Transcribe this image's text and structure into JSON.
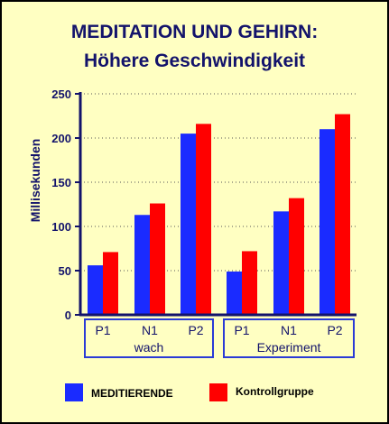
{
  "chart_data": {
    "type": "bar",
    "title": "MEDITATION UND GEHIRN:",
    "subtitle": "Höhere Geschwindigkeit",
    "ylabel": "Millisekunden",
    "xlabel": "",
    "ylim": [
      0,
      250
    ],
    "yticks": [
      0,
      50,
      100,
      150,
      200,
      250
    ],
    "grid": true,
    "categories": [
      "P1",
      "N1",
      "P2",
      "P1",
      "N1",
      "P2"
    ],
    "groups": [
      {
        "label": "wach",
        "categories": [
          "P1",
          "N1",
          "P2"
        ]
      },
      {
        "label": "Experiment",
        "categories": [
          "P1",
          "N1",
          "P2"
        ]
      }
    ],
    "series": [
      {
        "name": "MEDITIERENDE",
        "color": "#1a2bff",
        "values": [
          56,
          113,
          205,
          49,
          117,
          210
        ]
      },
      {
        "name": "Kontrollgruppe",
        "color": "#ff0000",
        "values": [
          71,
          126,
          216,
          72,
          132,
          227
        ]
      }
    ],
    "legend_placement": "bottom"
  },
  "colors": {
    "background": "#ffffc2",
    "title": "#13136b",
    "axis": "#13136b",
    "group_box": "#2a3bd6"
  }
}
